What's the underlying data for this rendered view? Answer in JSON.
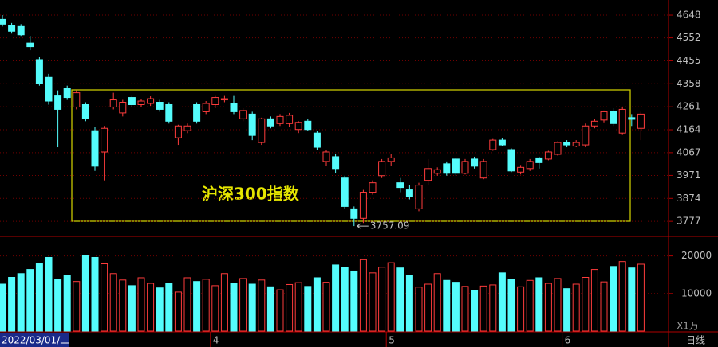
{
  "chart_data": [
    {
      "type": "candlestick",
      "title": "沪深300指数",
      "categories": [
        "2022/03/01/二",
        null,
        null,
        null,
        null,
        null,
        null,
        null,
        null,
        null,
        null,
        null,
        null,
        null,
        null,
        null,
        null,
        null,
        null,
        null,
        null,
        null,
        null,
        "4",
        null,
        null,
        null,
        null,
        null,
        null,
        null,
        null,
        null,
        null,
        null,
        null,
        null,
        null,
        null,
        null,
        null,
        null,
        "5",
        null,
        null,
        null,
        null,
        null,
        null,
        null,
        null,
        null,
        null,
        null,
        null,
        null,
        null,
        null,
        null,
        null,
        null,
        "6",
        null,
        null,
        null,
        null,
        null,
        null,
        null,
        null
      ],
      "open": [
        4630,
        4605,
        4600,
        4530,
        4460,
        4385,
        4310,
        4340,
        4260,
        4270,
        4160,
        4070,
        4260,
        4235,
        4300,
        4270,
        4275,
        4280,
        4270,
        4130,
        4160,
        4270,
        4240,
        4270,
        4290,
        4275,
        4210,
        4230,
        4110,
        4210,
        4190,
        4190,
        4165,
        4200,
        4150,
        4030,
        4050,
        3960,
        3830,
        3790,
        3900,
        3970,
        4030,
        3940,
        3910,
        3830,
        3950,
        3980,
        4020,
        4040,
        3980,
        4040,
        3960,
        4080,
        4120,
        4080,
        3985,
        4000,
        4045,
        4040,
        4060,
        4110,
        4095,
        4100,
        4180,
        4205,
        4240,
        4150,
        4215,
        4170
      ],
      "high": [
        4648,
        4615,
        4610,
        4560,
        4470,
        4400,
        4330,
        4350,
        4330,
        4280,
        4175,
        4180,
        4320,
        4290,
        4310,
        4295,
        4305,
        4290,
        4280,
        4185,
        4190,
        4280,
        4285,
        4310,
        4310,
        4310,
        4255,
        4240,
        4215,
        4220,
        4230,
        4235,
        4200,
        4210,
        4160,
        4080,
        4060,
        3970,
        3840,
        3910,
        3950,
        4040,
        4060,
        3960,
        3930,
        3940,
        4040,
        4005,
        4030,
        4045,
        4040,
        4050,
        4040,
        4125,
        4130,
        4085,
        4015,
        4040,
        4050,
        4075,
        4115,
        4120,
        4120,
        4190,
        4210,
        4245,
        4255,
        4260,
        4230,
        4240
      ],
      "low": [
        4600,
        4570,
        4560,
        4500,
        4350,
        4270,
        4090,
        4290,
        4250,
        4200,
        3990,
        3950,
        4250,
        4220,
        4260,
        4260,
        4265,
        4240,
        4190,
        4100,
        4150,
        4190,
        4230,
        4255,
        4280,
        4230,
        4200,
        4120,
        4100,
        4170,
        4180,
        4175,
        4150,
        4160,
        4080,
        4010,
        3980,
        3830,
        3757.09,
        3770,
        3890,
        3960,
        4010,
        3900,
        3870,
        3820,
        3930,
        3970,
        3970,
        3970,
        3975,
        4000,
        3955,
        4075,
        4095,
        3985,
        3975,
        3990,
        4000,
        4035,
        4055,
        4090,
        4090,
        4090,
        4170,
        4195,
        4180,
        4145,
        4180,
        4120
      ],
      "close": [
        4610,
        4580,
        4565,
        4515,
        4360,
        4285,
        4250,
        4300,
        4320,
        4210,
        4010,
        4170,
        4290,
        4280,
        4270,
        4285,
        4295,
        4250,
        4200,
        4180,
        4180,
        4200,
        4275,
        4300,
        4295,
        4240,
        4245,
        4140,
        4210,
        4180,
        4220,
        4225,
        4195,
        4165,
        4090,
        4070,
        4000,
        3840,
        3790,
        3900,
        3940,
        4030,
        4045,
        3920,
        3880,
        3930,
        4000,
        3995,
        3980,
        3980,
        4030,
        4010,
        4030,
        4120,
        4100,
        3990,
        4005,
        4030,
        4025,
        4070,
        4110,
        4100,
        4110,
        4180,
        4200,
        4240,
        4190,
        4250,
        4208,
        4230
      ],
      "up_color": "#ff3c3c",
      "down_color": "#54fcfc",
      "ylim": [
        3717,
        4712
      ],
      "yticks": [
        4648,
        4552,
        4455,
        4358,
        4261,
        4164,
        4067,
        3971,
        3874,
        3777
      ],
      "grid": true
    },
    {
      "type": "bar",
      "unit_label": "X1万",
      "period_label": "日线",
      "values": [
        12500,
        14300,
        15300,
        16400,
        17900,
        19600,
        13800,
        14900,
        13200,
        20200,
        19600,
        17900,
        15300,
        13600,
        12100,
        14200,
        12700,
        11500,
        12700,
        10400,
        14200,
        13200,
        13800,
        12100,
        15300,
        12800,
        14000,
        12500,
        13600,
        11800,
        11000,
        12400,
        12900,
        11900,
        14200,
        13000,
        17600,
        17000,
        16000,
        19000,
        15500,
        17000,
        18200,
        16800,
        14800,
        11700,
        12500,
        15300,
        13500,
        13000,
        11900,
        10700,
        12000,
        12300,
        15500,
        13800,
        11800,
        13500,
        14200,
        12700,
        14000,
        11300,
        12500,
        14300,
        16400,
        13100,
        17200,
        18500,
        16800,
        17800
      ],
      "ylim": [
        0,
        25000
      ],
      "yticks": [
        20000,
        10000
      ],
      "grid": true
    }
  ]
}
